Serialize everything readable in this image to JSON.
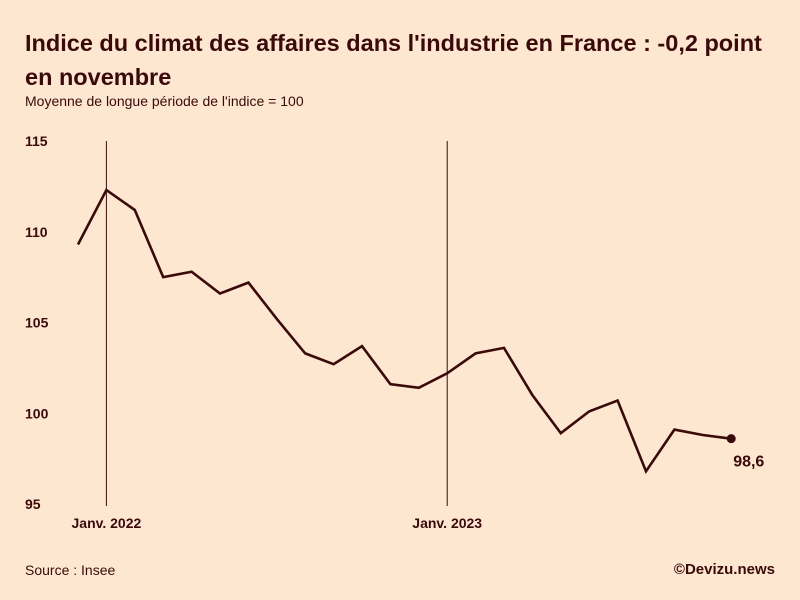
{
  "title": "Indice du climat des affaires dans l'industrie en France : -0,2 point en novembre",
  "subtitle": "Moyenne de longue période de l'indice = 100",
  "source": "Source : Insee",
  "credit": "©Devizu.news",
  "colors": {
    "background": "#fde7d0",
    "line": "#3a0a0a"
  },
  "chart_data": {
    "type": "line",
    "title": "Indice du climat des affaires dans l'industrie en France : -0,2 point en novembre",
    "subtitle": "Moyenne de longue période de l'indice = 100",
    "xlabel": "",
    "ylabel": "",
    "ylim": [
      95,
      115
    ],
    "yticks": [
      95,
      100,
      105,
      110,
      115
    ],
    "grid": false,
    "x": [
      "2021-12",
      "2022-01",
      "2022-02",
      "2022-03",
      "2022-04",
      "2022-05",
      "2022-06",
      "2022-07",
      "2022-08",
      "2022-09",
      "2022-10",
      "2022-11",
      "2022-12",
      "2023-01",
      "2023-02",
      "2023-03",
      "2023-04",
      "2023-05",
      "2023-06",
      "2023-07",
      "2023-08",
      "2023-09",
      "2023-10",
      "2023-11"
    ],
    "series": [
      {
        "values": [
          109.3,
          112.3,
          111.2,
          107.5,
          107.8,
          106.6,
          107.2,
          105.2,
          103.3,
          102.7,
          103.7,
          101.6,
          101.4,
          102.2,
          103.3,
          103.6,
          101.0,
          98.9,
          100.1,
          100.7,
          96.8,
          99.1,
          98.8,
          98.6
        ]
      }
    ],
    "markers": [
      {
        "x": "2022-01",
        "label": "Janv. 2022"
      },
      {
        "x": "2023-01",
        "label": "Janv. 2023"
      }
    ],
    "last_value_label": "98,6"
  }
}
